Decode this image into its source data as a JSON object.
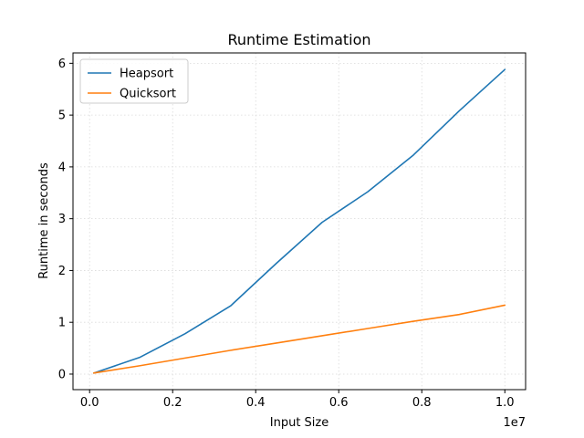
{
  "chart_data": {
    "type": "line",
    "title": "Runtime Estimation",
    "xlabel": "Input Size",
    "ylabel": "Runtime in seconds",
    "x_offset_label": "1e7",
    "xlim": [
      -0.04,
      1.05
    ],
    "ylim": [
      -0.3,
      6.2
    ],
    "x_ticks": [
      0.0,
      0.2,
      0.4,
      0.6,
      0.8,
      1.0
    ],
    "x_tick_labels": [
      "0.0",
      "0.2",
      "0.4",
      "0.6",
      "0.8",
      "1.0"
    ],
    "y_ticks": [
      0,
      1,
      2,
      3,
      4,
      5,
      6
    ],
    "y_tick_labels": [
      "0",
      "1",
      "2",
      "3",
      "4",
      "5",
      "6"
    ],
    "grid": true,
    "legend_position": "upper left",
    "series": [
      {
        "name": "Heapsort",
        "color": "#1f77b4",
        "x": [
          0.01,
          0.12,
          0.23,
          0.34,
          0.45,
          0.56,
          0.67,
          0.78,
          0.89,
          1.0
        ],
        "y": [
          0.02,
          0.32,
          0.78,
          1.32,
          2.14,
          2.93,
          3.52,
          4.23,
          5.08,
          5.88
        ]
      },
      {
        "name": "Quicksort",
        "color": "#ff7f0e",
        "x": [
          0.01,
          0.12,
          0.23,
          0.34,
          0.45,
          0.56,
          0.67,
          0.78,
          0.89,
          1.0
        ],
        "y": [
          0.02,
          0.16,
          0.31,
          0.46,
          0.6,
          0.74,
          0.88,
          1.02,
          1.15,
          1.33
        ]
      }
    ]
  }
}
